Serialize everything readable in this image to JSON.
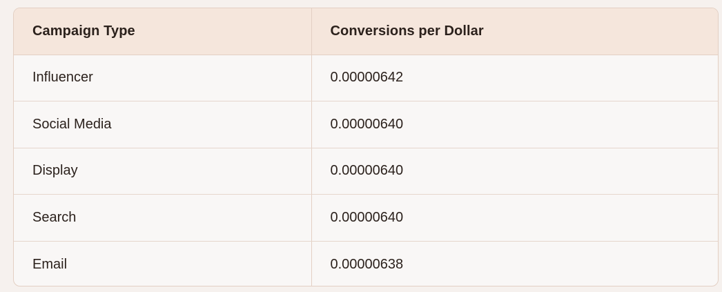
{
  "table": {
    "headers": [
      "Campaign Type",
      "Conversions per Dollar"
    ],
    "rows": [
      [
        "Influencer",
        "0.00000642"
      ],
      [
        "Social Media",
        "0.00000640"
      ],
      [
        "Display",
        "0.00000640"
      ],
      [
        "Search",
        "0.00000640"
      ],
      [
        "Email",
        "0.00000638"
      ]
    ]
  }
}
